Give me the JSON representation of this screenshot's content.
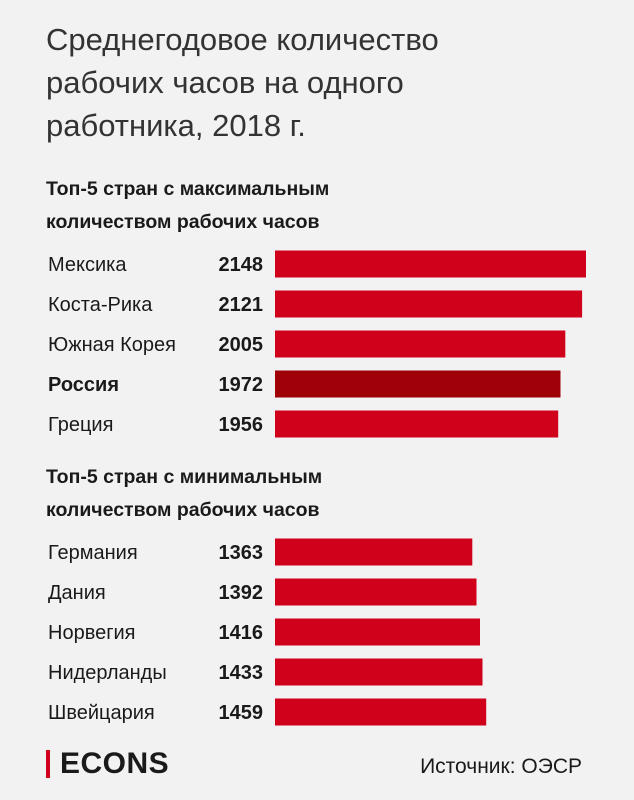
{
  "title": "Среднегодовое количество\nрабочих часов на одного\nработника, 2018 г.",
  "brand": "ECONS",
  "source": "Источник: ОЭСР",
  "colors": {
    "bar": "#d0021b",
    "highlight": "#a00008",
    "accent": "#d0021b"
  },
  "chart_data": [
    {
      "type": "bar",
      "orientation": "horizontal",
      "title": "Топ-5 стран с максимальным\nколичеством рабочих часов",
      "categories": [
        "Мексика",
        "Коста-Рика",
        "Южная Корея",
        "Россия",
        "Греция"
      ],
      "values": [
        2148,
        2121,
        2005,
        1972,
        1956
      ],
      "highlight": "Россия",
      "xlim": [
        0,
        2148
      ]
    },
    {
      "type": "bar",
      "orientation": "horizontal",
      "title": "Топ-5 стран с минимальным\nколичеством рабочих часов",
      "categories": [
        "Германия",
        "Дания",
        "Норвегия",
        "Нидерланды",
        "Швейцария"
      ],
      "values": [
        1363,
        1392,
        1416,
        1433,
        1459
      ],
      "xlim": [
        0,
        2148
      ]
    }
  ]
}
